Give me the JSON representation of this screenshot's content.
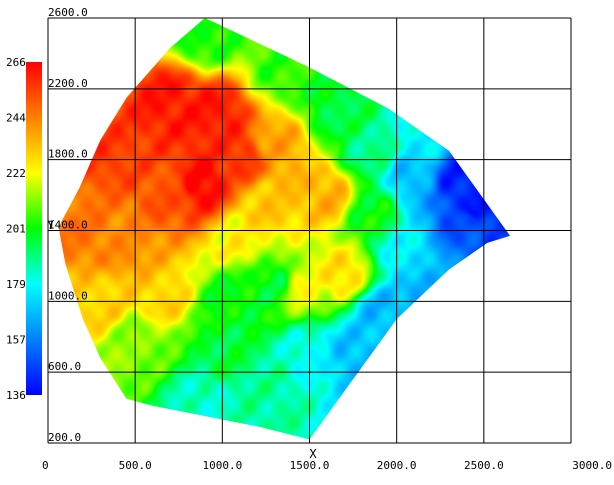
{
  "chart_data": {
    "type": "heatmap",
    "title": "",
    "xlabel": "X",
    "ylabel": "Y",
    "xlim": [
      0,
      3000
    ],
    "ylim": [
      200,
      2600
    ],
    "x_ticks": [
      "0",
      "500.0",
      "1000.0",
      "1500.0",
      "2000.0",
      "2500.0",
      "3000.0"
    ],
    "x_tick_values": [
      0,
      500,
      1000,
      1500,
      2000,
      2500,
      3000
    ],
    "y_ticks": [
      "200.0",
      "600.0",
      "1000.0",
      "1400.0",
      "1800.0",
      "2200.0",
      "2600.0"
    ],
    "y_tick_values": [
      200,
      600,
      1000,
      1400,
      1800,
      2200,
      2600
    ],
    "grid": true,
    "colorbar": {
      "min": 136,
      "max": 266,
      "labels": [
        "266",
        "244",
        "222",
        "201",
        "179",
        "157",
        "136"
      ],
      "values": [
        266,
        244,
        222,
        201,
        179,
        157,
        136
      ],
      "colors": [
        "#ff0000",
        "#ff8000",
        "#ffff00",
        "#00ff00",
        "#00ffff",
        "#0080ff",
        "#0000ff"
      ],
      "placement": "left"
    },
    "boundary": [
      [
        900,
        2600
      ],
      [
        1480,
        2330
      ],
      [
        1950,
        2090
      ],
      [
        2300,
        1850
      ],
      [
        2650,
        1370
      ],
      [
        2520,
        1330
      ],
      [
        2300,
        1180
      ],
      [
        2000,
        900
      ],
      [
        1500,
        220
      ],
      [
        1220,
        290
      ],
      [
        600,
        410
      ],
      [
        450,
        450
      ],
      [
        300,
        680
      ],
      [
        200,
        900
      ],
      [
        100,
        1210
      ],
      [
        60,
        1420
      ],
      [
        180,
        1640
      ],
      [
        300,
        1910
      ],
      [
        450,
        2150
      ],
      [
        700,
        2430
      ],
      [
        900,
        2600
      ]
    ],
    "samples": [
      {
        "x": 340,
        "y": 1870,
        "z": 256
      },
      {
        "x": 700,
        "y": 2130,
        "z": 262
      },
      {
        "x": 960,
        "y": 2060,
        "z": 262
      },
      {
        "x": 880,
        "y": 1650,
        "z": 266
      },
      {
        "x": 1100,
        "y": 1820,
        "z": 258
      },
      {
        "x": 700,
        "y": 1620,
        "z": 252
      },
      {
        "x": 200,
        "y": 1400,
        "z": 246
      },
      {
        "x": 450,
        "y": 1300,
        "z": 242
      },
      {
        "x": 1230,
        "y": 1540,
        "z": 232
      },
      {
        "x": 1300,
        "y": 1880,
        "z": 238
      },
      {
        "x": 1350,
        "y": 2300,
        "z": 205
      },
      {
        "x": 900,
        "y": 2500,
        "z": 202
      },
      {
        "x": 1600,
        "y": 1600,
        "z": 236
      },
      {
        "x": 1700,
        "y": 1150,
        "z": 228
      },
      {
        "x": 1450,
        "y": 1080,
        "z": 222
      },
      {
        "x": 1300,
        "y": 1100,
        "z": 198
      },
      {
        "x": 1050,
        "y": 1000,
        "z": 200
      },
      {
        "x": 1100,
        "y": 1370,
        "z": 224
      },
      {
        "x": 640,
        "y": 1030,
        "z": 230
      },
      {
        "x": 520,
        "y": 780,
        "z": 212
      },
      {
        "x": 300,
        "y": 1000,
        "z": 230
      },
      {
        "x": 1000,
        "y": 700,
        "z": 196
      },
      {
        "x": 1250,
        "y": 500,
        "z": 188
      },
      {
        "x": 900,
        "y": 460,
        "z": 184
      },
      {
        "x": 1500,
        "y": 700,
        "z": 180
      },
      {
        "x": 1750,
        "y": 700,
        "z": 168
      },
      {
        "x": 1900,
        "y": 950,
        "z": 168
      },
      {
        "x": 2050,
        "y": 1250,
        "z": 176
      },
      {
        "x": 2200,
        "y": 1050,
        "z": 162
      },
      {
        "x": 2400,
        "y": 1450,
        "z": 150
      },
      {
        "x": 2450,
        "y": 1530,
        "z": 140
      },
      {
        "x": 2350,
        "y": 1700,
        "z": 142
      },
      {
        "x": 2100,
        "y": 1700,
        "z": 168
      },
      {
        "x": 1850,
        "y": 1850,
        "z": 190
      },
      {
        "x": 1650,
        "y": 2100,
        "z": 196
      },
      {
        "x": 1850,
        "y": 1500,
        "z": 200
      },
      {
        "x": 2150,
        "y": 1900,
        "z": 178
      }
    ]
  }
}
